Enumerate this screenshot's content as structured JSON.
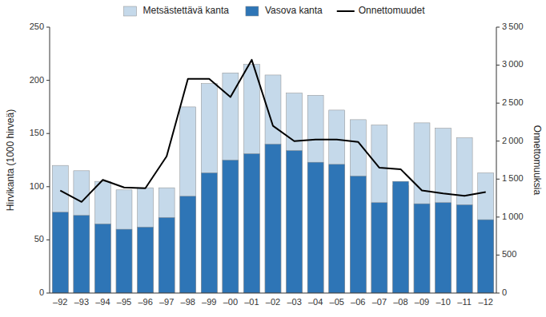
{
  "chart_data": {
    "type": "bar",
    "categories": [
      "–92",
      "–93",
      "–94",
      "–95",
      "–96",
      "–97",
      "–98",
      "–99",
      "–00",
      "–01",
      "–02",
      "–03",
      "–04",
      "–05",
      "–06",
      "–07",
      "–08",
      "–09",
      "–10",
      "–11",
      "–12"
    ],
    "series": [
      {
        "name": "Metsästettävä kanta",
        "type": "bar",
        "color": "#c5d9ea",
        "values": [
          120,
          115,
          105,
          97,
          99,
          99,
          175,
          197,
          207,
          215,
          205,
          188,
          186,
          172,
          163,
          158,
          101,
          160,
          155,
          146,
          113
        ]
      },
      {
        "name": "Vasova kanta",
        "type": "bar",
        "color": "#2e75b6",
        "values": [
          76,
          73,
          65,
          60,
          62,
          71,
          91,
          113,
          125,
          131,
          140,
          134,
          123,
          121,
          110,
          85,
          105,
          84,
          85,
          83,
          69
        ]
      },
      {
        "name": "Onnettomuudet",
        "type": "line",
        "axis": "y2",
        "color": "#000000",
        "values": [
          1350,
          1200,
          1490,
          1390,
          1380,
          1800,
          2820,
          2820,
          2580,
          3070,
          2200,
          2000,
          2020,
          2020,
          1990,
          1650,
          1630,
          1350,
          1310,
          1280,
          1330
        ]
      }
    ],
    "ylabel": "Hirvikanta (1000 hirveä)",
    "y2label": "Onnettomuuksia",
    "ylim": [
      0,
      250
    ],
    "yticks": [
      0,
      50,
      100,
      150,
      200,
      250
    ],
    "y2lim": [
      0,
      3500
    ],
    "y2ticks": [
      0,
      500,
      {
        "value": 1000,
        "label": "1 000"
      },
      {
        "value": 1500,
        "label": "1 500"
      },
      {
        "value": 2000,
        "label": "2 000"
      },
      {
        "value": 2500,
        "label": "2 500"
      },
      {
        "value": 3000,
        "label": "3 000"
      },
      {
        "value": 3500,
        "label": "3 500"
      }
    ],
    "stacked": false,
    "grid": false,
    "legend": "top"
  }
}
